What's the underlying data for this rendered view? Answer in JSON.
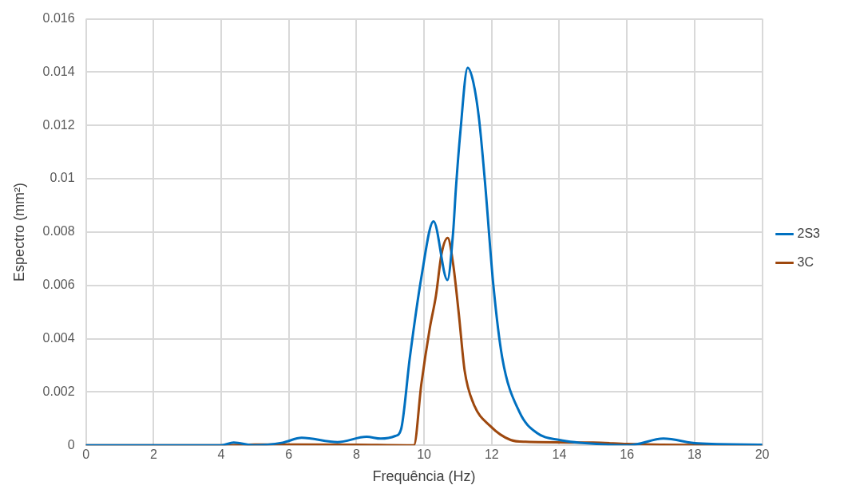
{
  "chart_data": {
    "type": "line",
    "xlabel": "Frequência (Hz)",
    "ylabel": "Espectro (mm²)",
    "xlim": [
      0,
      20
    ],
    "xticks": [
      0,
      2,
      4,
      6,
      8,
      10,
      12,
      14,
      16,
      18,
      20
    ],
    "ylim": [
      0,
      0.016
    ],
    "yticks": [
      0,
      0.002,
      0.004,
      0.006,
      0.008,
      0.01,
      0.012,
      0.014,
      0.016
    ],
    "grid": true,
    "legend": "right",
    "marker": "none",
    "line_style": "solid",
    "series": [
      {
        "name": "2S3",
        "color": "#0070c0",
        "x": [
          0,
          2,
          4,
          4.37,
          4.97,
          5.82,
          6.38,
          7.44,
          8.3,
          8.72,
          9.15,
          9.32,
          9.58,
          9.92,
          10.28,
          10.69,
          10.86,
          10.94,
          11.07,
          11.29,
          11.46,
          11.63,
          11.8,
          12.05,
          12.31,
          12.82,
          13.33,
          14.0,
          15.38,
          16.06,
          17.08,
          18.1,
          20
        ],
        "values": [
          0,
          0,
          0,
          0.0001,
          0,
          0.0001,
          0.00028,
          0.00012,
          0.00032,
          0.00025,
          0.00035,
          0.0006,
          0.0033,
          0.0063,
          0.0084,
          0.0062,
          0.008,
          0.0096,
          0.0117,
          0.01416,
          0.0136,
          0.0122,
          0.0099,
          0.006,
          0.0033,
          0.00125,
          0.00047,
          0.0002,
          3e-05,
          0,
          0.00025,
          7e-05,
          2e-05
        ]
      },
      {
        "name": "3C",
        "color": "#9e480e",
        "x": [
          0,
          4,
          5,
          8,
          9.5,
          9.7,
          9.92,
          10.17,
          10.35,
          10.52,
          10.7,
          10.86,
          11.03,
          11.2,
          11.46,
          11.96,
          12.56,
          13,
          15,
          16,
          17,
          20
        ],
        "values": [
          0,
          0,
          3e-05,
          2e-05,
          0,
          0,
          0.0023,
          0.0044,
          0.0056,
          0.0072,
          0.00778,
          0.0068,
          0.0049,
          0.0028,
          0.00157,
          0.00072,
          0.0002,
          0.00013,
          0.0001,
          5e-05,
          2e-05,
          0
        ]
      }
    ]
  }
}
